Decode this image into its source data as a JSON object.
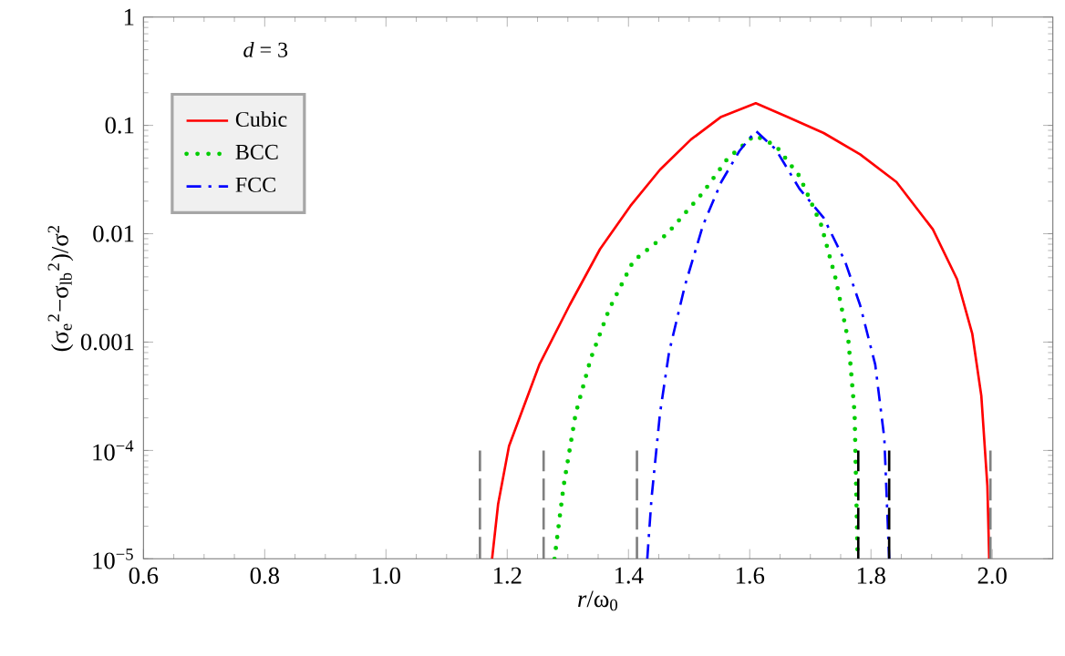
{
  "chart_data": {
    "type": "line",
    "xlabel": "*r*/ω$_{0}$",
    "ylabel": "(σ$_{e}$$^{2}$−σ$_{lb}$$^{2}$)/σ$^{2}$",
    "annotations": [
      "*d* = 3"
    ],
    "log": "y",
    "legend": "top left",
    "xlim": [
      0.6,
      2.1
    ],
    "ylim": [
      1e-05,
      1
    ],
    "xticks": [
      0.6,
      0.8,
      {
        "value": 1.0,
        "label": "1.0"
      },
      1.2,
      1.4,
      1.6,
      1.8,
      {
        "value": 2.0,
        "label": "2.0"
      }
    ],
    "yticks": [
      {
        "value": 1e-05,
        "label": "10$^{−5}$"
      },
      {
        "value": 0.0001,
        "label": "10$^{−4}$"
      },
      0.001,
      0.01,
      0.1,
      1
    ],
    "series": [
      {
        "name": "Cubic",
        "color": "#ff0000",
        "line_style": "solid",
        "x": [
          1.175,
          1.185,
          1.203,
          1.253,
          1.303,
          1.353,
          1.403,
          1.452,
          1.503,
          1.553,
          1.61,
          1.662,
          1.722,
          1.782,
          1.842,
          1.902,
          1.942,
          1.967,
          1.982,
          1.992,
          1.995
        ],
        "values": [
          1e-05,
          3.2e-05,
          0.00011,
          0.00062,
          0.0022,
          0.0072,
          0.018,
          0.039,
          0.074,
          0.12,
          0.16,
          0.12,
          0.085,
          0.054,
          0.03,
          0.011,
          0.0038,
          0.0012,
          0.00032,
          4.7e-05,
          1e-05
        ]
      },
      {
        "name": "BCC",
        "color": "#00cc00",
        "line_style": "dotted",
        "x": [
          1.278,
          1.293,
          1.313,
          1.338,
          1.368,
          1.408,
          1.464,
          1.523,
          1.563,
          1.608,
          1.643,
          1.682,
          1.718,
          1.742,
          1.763,
          1.773,
          1.778
        ],
        "values": [
          1e-05,
          4.7e-05,
          0.00022,
          0.00071,
          0.002,
          0.0056,
          0.01,
          0.024,
          0.049,
          0.081,
          0.065,
          0.034,
          0.012,
          0.0038,
          0.001,
          0.00022,
          1e-05
        ]
      },
      {
        "name": "FCC",
        "color": "#0000ff",
        "line_style": "dashdot",
        "x": [
          1.431,
          1.438,
          1.452,
          1.467,
          1.493,
          1.523,
          1.553,
          1.583,
          1.61,
          1.643,
          1.682,
          1.722,
          1.757,
          1.782,
          1.807,
          1.822,
          1.83
        ],
        "values": [
          1e-05,
          3.6e-05,
          0.00022,
          0.00081,
          0.0033,
          0.012,
          0.03,
          0.058,
          0.089,
          0.06,
          0.026,
          0.014,
          0.0056,
          0.0022,
          0.00062,
          0.00013,
          1e-05
        ]
      },
      {
        "color": "#808080",
        "line_style": "dashed",
        "x": [
          1.155,
          1.155
        ],
        "values": [
          1e-05,
          0.0001
        ]
      },
      {
        "color": "#808080",
        "line_style": "dashed",
        "x": [
          1.26,
          1.26
        ],
        "values": [
          1e-05,
          0.0001
        ]
      },
      {
        "color": "#808080",
        "line_style": "dashed",
        "x": [
          1.414,
          1.414
        ],
        "values": [
          1e-05,
          0.0001
        ]
      },
      {
        "color": "#000000",
        "line_style": "dashed",
        "x": [
          1.779,
          1.779
        ],
        "values": [
          1e-05,
          0.0001
        ]
      },
      {
        "color": "#000000",
        "line_style": "dashed",
        "x": [
          1.83,
          1.83
        ],
        "values": [
          1e-05,
          0.0001
        ]
      },
      {
        "color": "#808080",
        "line_style": "dashed",
        "x": [
          1.997,
          1.997
        ],
        "values": [
          1e-05,
          0.0001
        ]
      }
    ]
  }
}
